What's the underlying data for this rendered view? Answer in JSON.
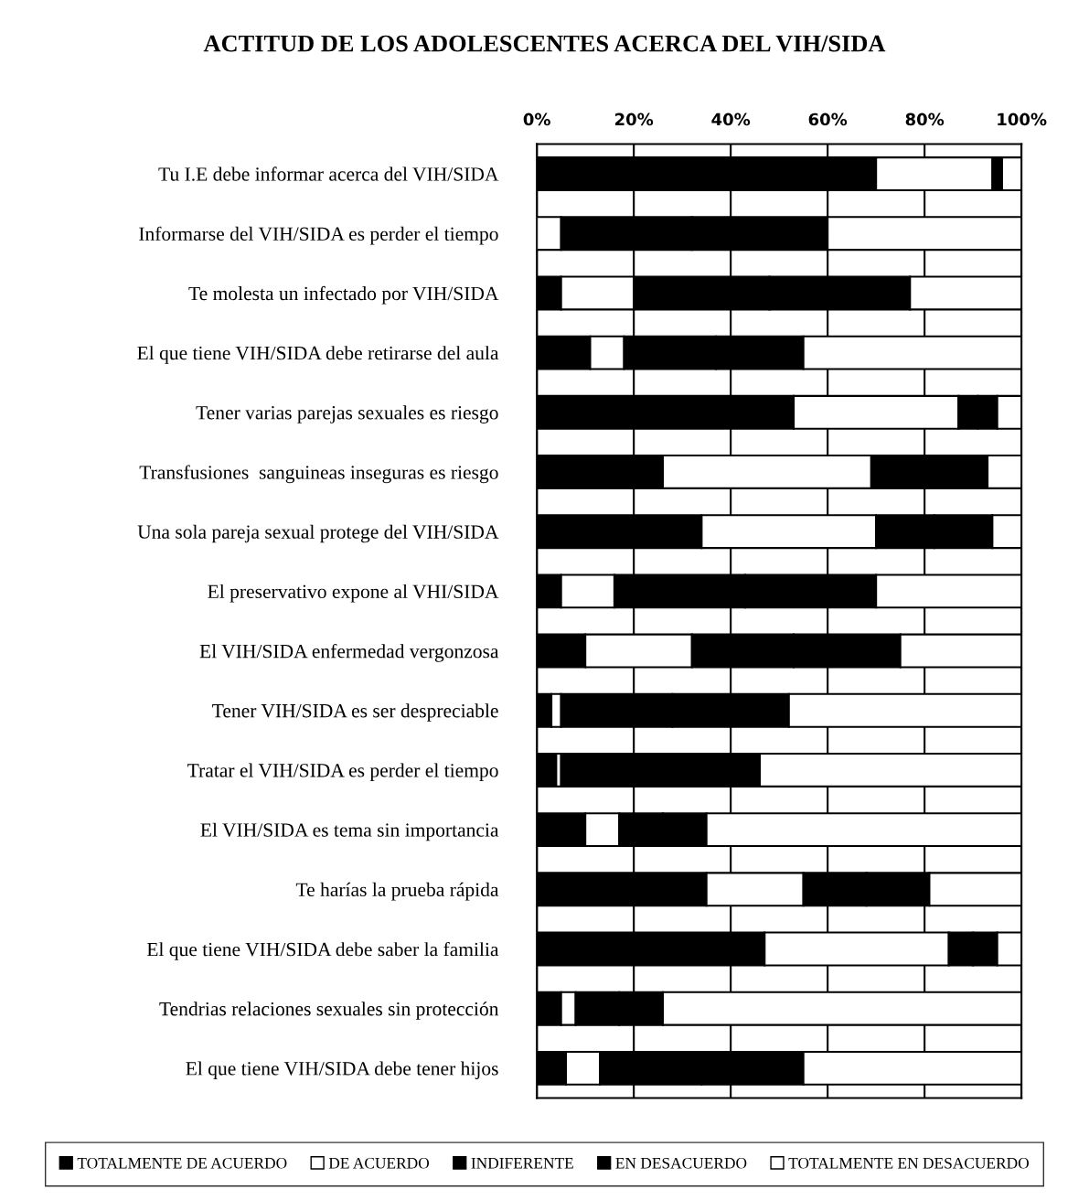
{
  "chart_data": {
    "type": "bar",
    "orientation": "horizontal",
    "stacked": true,
    "title": "ACTITUD DE LOS ADOLESCENTES ACERCA DEL VIH/SIDA",
    "categories": [
      "Tu I.E debe informar acerca del VIH/SIDA",
      "Informarse del VIH/SIDA es perder el tiempo",
      "Te molesta un infectado por VIH/SIDA",
      "El que tiene VIH/SIDA debe retirarse del aula",
      "Tener varias parejas sexuales es riesgo",
      "Transfusiones  sanguineas inseguras es riesgo",
      "Una sola pareja sexual protege del VIH/SIDA",
      "El preservativo expone al VHI/SIDA",
      "El VIH/SIDA enfermedad vergonzosa",
      "Tener VIH/SIDA es ser despreciable",
      "Tratar el VIH/SIDA es perder el tiempo",
      "El VIH/SIDA es tema sin importancia",
      "Te harías la prueba rápida",
      "El que tiene VIH/SIDA debe saber la familia",
      "Tendrias relaciones sexuales sin protección",
      "El que tiene VIH/SIDA debe tener hijos"
    ],
    "series": [
      {
        "name": "TOTALMENTE DE ACUERDO",
        "color": "#000000",
        "values": [
          70,
          0,
          5,
          11,
          53,
          26,
          34,
          5,
          10,
          3,
          4,
          10,
          35,
          47,
          5,
          6
        ]
      },
      {
        "name": "DE ACUERDO",
        "color": "#ffffff",
        "values": [
          24,
          5,
          15,
          7,
          34,
          43,
          36,
          11,
          22,
          2,
          1,
          7,
          20,
          38,
          3,
          7
        ]
      },
      {
        "name": "INDIFERENTE",
        "color": "#000000",
        "values": [
          1,
          27,
          28,
          19,
          4,
          12,
          12,
          27,
          21,
          23,
          21,
          9,
          13,
          5,
          9,
          21
        ]
      },
      {
        "name": "EN DESACUERDO",
        "color": "#000000",
        "values": [
          1,
          28,
          29,
          18,
          4,
          12,
          12,
          27,
          22,
          24,
          20,
          9,
          13,
          5,
          9,
          21
        ]
      },
      {
        "name": "TOTALMENTE EN DESACUERDO",
        "color": "#ffffff",
        "values": [
          4,
          40,
          23,
          45,
          5,
          7,
          6,
          30,
          25,
          48,
          54,
          65,
          19,
          5,
          74,
          45
        ]
      }
    ],
    "xlim": [
      0,
      100
    ],
    "xticks": [
      {
        "value": 0,
        "label": "0%"
      },
      {
        "value": 20,
        "label": "20%"
      },
      {
        "value": 40,
        "label": "40%"
      },
      {
        "value": 60,
        "label": "60%"
      },
      {
        "value": 80,
        "label": "80%"
      },
      {
        "value": 100,
        "label": "100%"
      }
    ],
    "grid": "x",
    "legend": "bottom"
  }
}
